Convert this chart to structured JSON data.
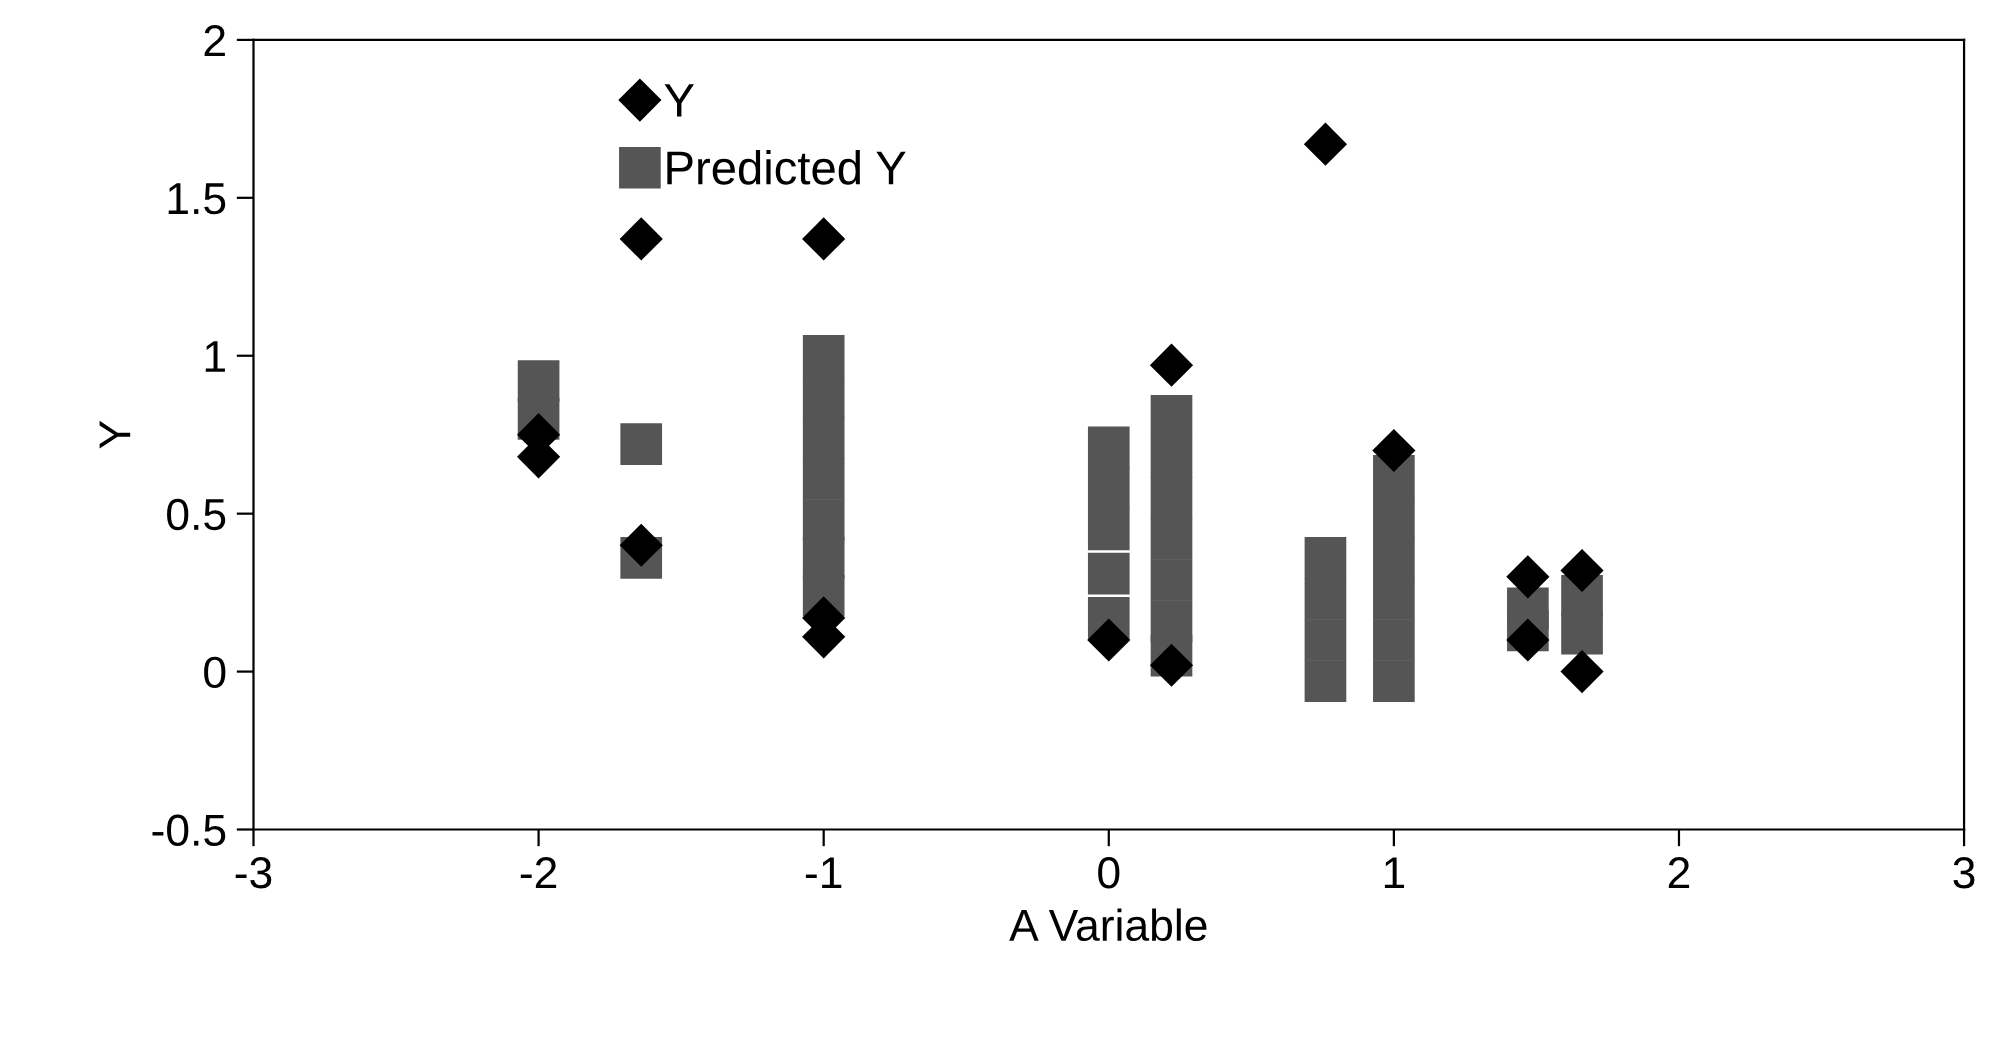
{
  "chart_data": {
    "type": "scatter",
    "xlabel": "A Variable",
    "ylabel": "Y",
    "xlim": [
      -3,
      3
    ],
    "xticks": [
      -3,
      -2,
      -1,
      0,
      1,
      2,
      3
    ],
    "ylim": [
      -0.5,
      2
    ],
    "yticks": [
      -0.5,
      0,
      0.5,
      1,
      1.5,
      2
    ],
    "grid": false,
    "legend": "top left",
    "series": [
      {
        "name": "Y",
        "color": "#000000",
        "marker": "diamond",
        "x": [
          -2,
          -2,
          -1.64,
          -1.64,
          -1,
          -1,
          -1,
          0,
          0.22,
          0.22,
          0.76,
          1,
          1.47,
          1.47,
          1.66,
          1.66
        ],
        "values": [
          0.68,
          0.75,
          1.37,
          0.4,
          1.37,
          0.17,
          0.11,
          0.1,
          0.97,
          0.02,
          1.67,
          0.7,
          0.3,
          0.1,
          0.32,
          0.0
        ]
      },
      {
        "name": "Predicted Y",
        "color": "#555555",
        "marker": "square",
        "x": [
          -2,
          -2,
          -1.64,
          -1.64,
          -1,
          -1,
          -1,
          -1,
          -1,
          -1,
          -1,
          0,
          0,
          0,
          0,
          0,
          0.22,
          0.22,
          0.22,
          0.22,
          0.22,
          0.22,
          0.22,
          0.76,
          0.76,
          0.76,
          0.76,
          1,
          1,
          1,
          1,
          1,
          1,
          1.47,
          1.47,
          1.66,
          1.66
        ],
        "values": [
          0.92,
          0.8,
          0.72,
          0.36,
          1.0,
          0.87,
          0.74,
          0.61,
          0.48,
          0.36,
          0.24,
          0.71,
          0.58,
          0.45,
          0.31,
          0.17,
          0.81,
          0.68,
          0.55,
          0.42,
          0.29,
          0.16,
          0.05,
          0.36,
          0.23,
          0.1,
          -0.03,
          0.62,
          0.49,
          0.36,
          0.23,
          0.1,
          -0.03,
          0.2,
          0.13,
          0.24,
          0.12
        ]
      }
    ]
  }
}
